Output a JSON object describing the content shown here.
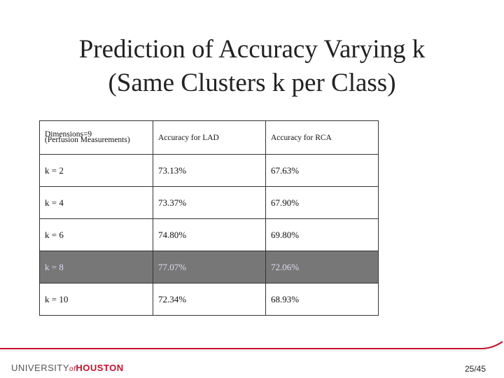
{
  "title": {
    "line1": "Prediction of Accuracy Varying k",
    "line2": "(Same Clusters k per Class)"
  },
  "table": {
    "header": {
      "dimensions": "Dimensions=9",
      "measurements": "(Perfusion Measurements)",
      "lad": "Accuracy for LAD",
      "rca": "Accuracy for RCA"
    },
    "rows": [
      [
        "k = 2",
        "73.13%",
        "67.63%"
      ],
      [
        "k = 4",
        "73.37%",
        "67.90%"
      ],
      [
        "k = 6",
        "74.80%",
        "69.80%"
      ],
      [
        "k = 8",
        "77.07%",
        "72.06%"
      ],
      [
        "k = 10",
        "72.34%",
        "68.93%"
      ]
    ]
  },
  "footer": {
    "logo_university": "UNIVERSITY",
    "logo_of": "of",
    "logo_houston": "HOUSTON",
    "page_number": "25/45"
  }
}
